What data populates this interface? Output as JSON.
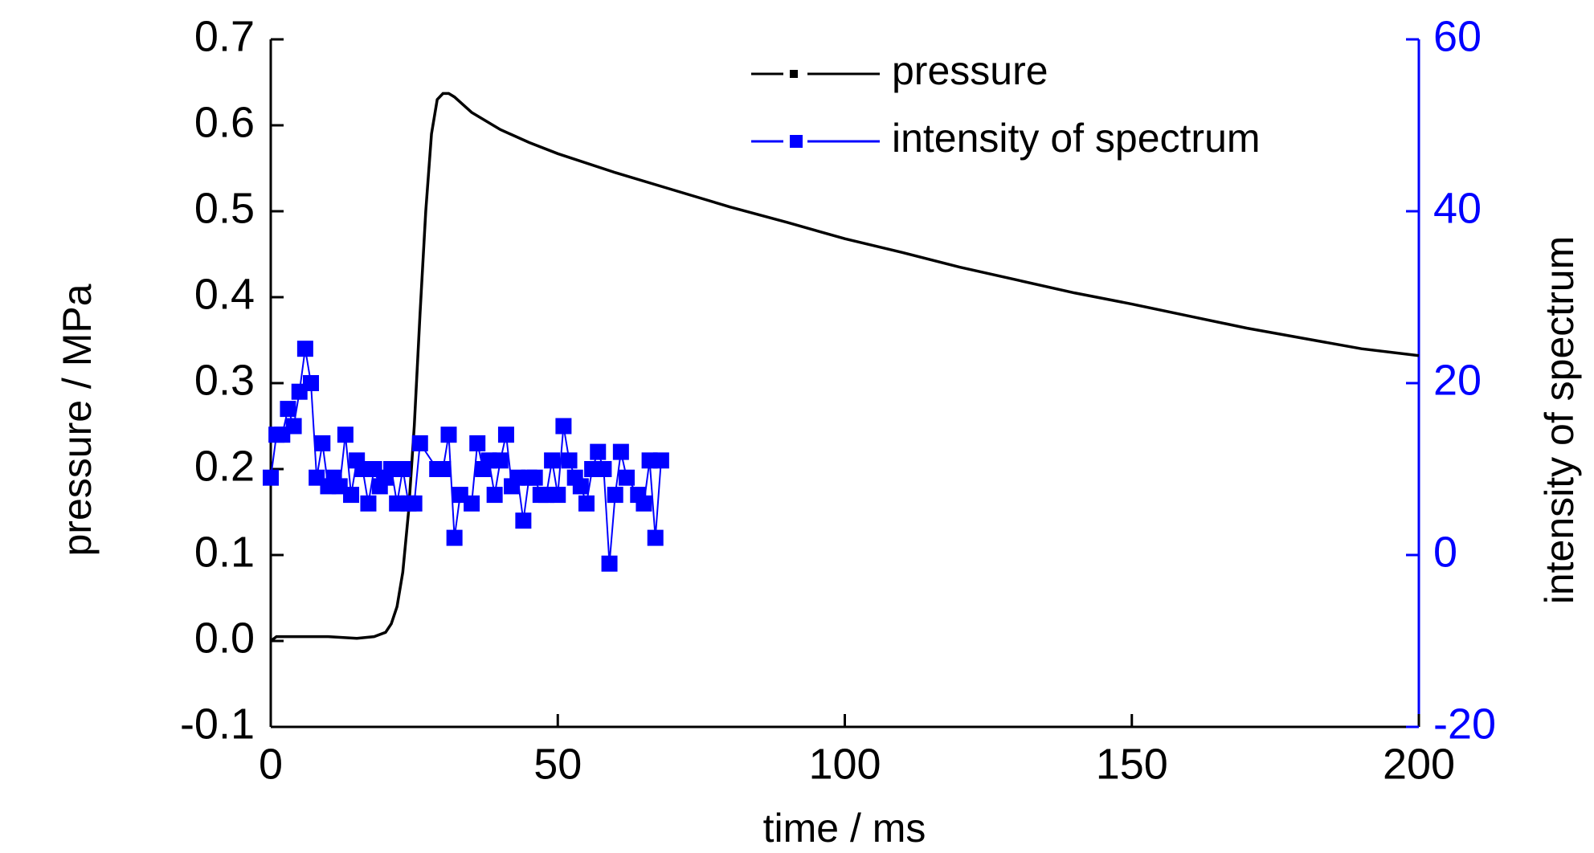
{
  "chart_data": {
    "type": "line",
    "xlabel": "time / ms",
    "ylabel": "pressure / MPa",
    "y2label": "intensity of spectrum",
    "xlim": [
      0,
      200
    ],
    "xticks": [
      0,
      50,
      100,
      150,
      200
    ],
    "ylim": [
      -0.1,
      0.7
    ],
    "yticks": [
      -0.1,
      {
        "value": 0,
        "label": "0.0"
      },
      0.1,
      0.2,
      0.3,
      0.4,
      0.5,
      0.6,
      0.7
    ],
    "y2lim": [
      -20,
      60
    ],
    "y2ticks": [
      -20,
      0,
      20,
      40,
      60
    ],
    "legend": "top",
    "series": [
      {
        "name": "pressure",
        "color": "#000000",
        "marker": false,
        "x": [
          0,
          1,
          5,
          10,
          15,
          18,
          20,
          21,
          22,
          23,
          24,
          25,
          26,
          27,
          28,
          29,
          30,
          31,
          32,
          35,
          40,
          45,
          50,
          60,
          70,
          80,
          90,
          100,
          110,
          120,
          130,
          140,
          150,
          160,
          170,
          180,
          190,
          200
        ],
        "values": [
          0.0,
          0.005,
          0.005,
          0.005,
          0.003,
          0.005,
          0.01,
          0.02,
          0.04,
          0.08,
          0.15,
          0.25,
          0.38,
          0.5,
          0.59,
          0.63,
          0.637,
          0.637,
          0.633,
          0.615,
          0.595,
          0.58,
          0.567,
          0.545,
          0.525,
          0.505,
          0.487,
          0.468,
          0.452,
          0.435,
          0.42,
          0.405,
          0.392,
          0.378,
          0.364,
          0.352,
          0.34,
          0.332
        ]
      },
      {
        "name": "intensity of spectrum",
        "color": "#0000ff",
        "marker": true,
        "axis": "y2",
        "x": [
          0,
          1,
          2,
          3,
          4,
          5,
          6,
          7,
          8,
          9,
          10,
          11,
          12,
          13,
          14,
          15,
          16,
          17,
          18,
          19,
          20,
          21,
          22,
          23,
          24,
          25,
          26,
          29,
          30,
          31,
          32,
          33,
          35,
          36,
          37,
          38,
          39,
          40,
          41,
          42,
          43,
          44,
          45,
          46,
          47,
          48,
          49,
          50,
          51,
          52,
          53,
          54,
          55,
          56,
          57,
          58,
          59,
          60,
          61,
          62,
          64,
          65,
          66,
          67,
          68
        ],
        "values": [
          9,
          14,
          14,
          17,
          15,
          19,
          24,
          20,
          9,
          13,
          8,
          9,
          8,
          14,
          7,
          11,
          10,
          6,
          10,
          8,
          9,
          10,
          6,
          10,
          6,
          6,
          13,
          10,
          10,
          14,
          2,
          7,
          6,
          13,
          10,
          11,
          7,
          11,
          14,
          8,
          9,
          4,
          9,
          9,
          7,
          7,
          11,
          7,
          15,
          11,
          9,
          8,
          6,
          10,
          12,
          10,
          -1,
          7,
          12,
          9,
          7,
          6,
          11,
          2,
          11
        ]
      }
    ]
  }
}
